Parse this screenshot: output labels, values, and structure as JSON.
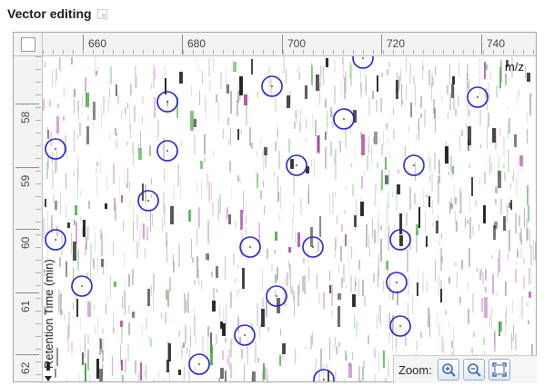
{
  "header": {
    "title": "Vector editing",
    "layout_icon": "window-layout-icon"
  },
  "rulers": {
    "mz_ticks": [
      "660",
      "680",
      "700",
      "720",
      "740"
    ],
    "rt_ticks": [
      "58",
      "59",
      "60",
      "61",
      "62"
    ]
  },
  "plot": {
    "x_axis_label": "m/z",
    "y_axis_label": "Retention Time (min)",
    "x_arrow_icon": "triangle-right-icon",
    "y_arrow_icon": "triangle-down-icon",
    "colors": {
      "marker": "#2020d0",
      "signal_dark": "#1c1c1c",
      "signal_magenta": "#b04ab0",
      "signal_green": "#3caa3c"
    },
    "features_count_visible": 24
  },
  "zoom": {
    "label": "Zoom:",
    "zoom_in_icon": "zoom-in-icon",
    "zoom_out_icon": "zoom-out-icon",
    "fit_icon": "fit-to-window-icon"
  }
}
